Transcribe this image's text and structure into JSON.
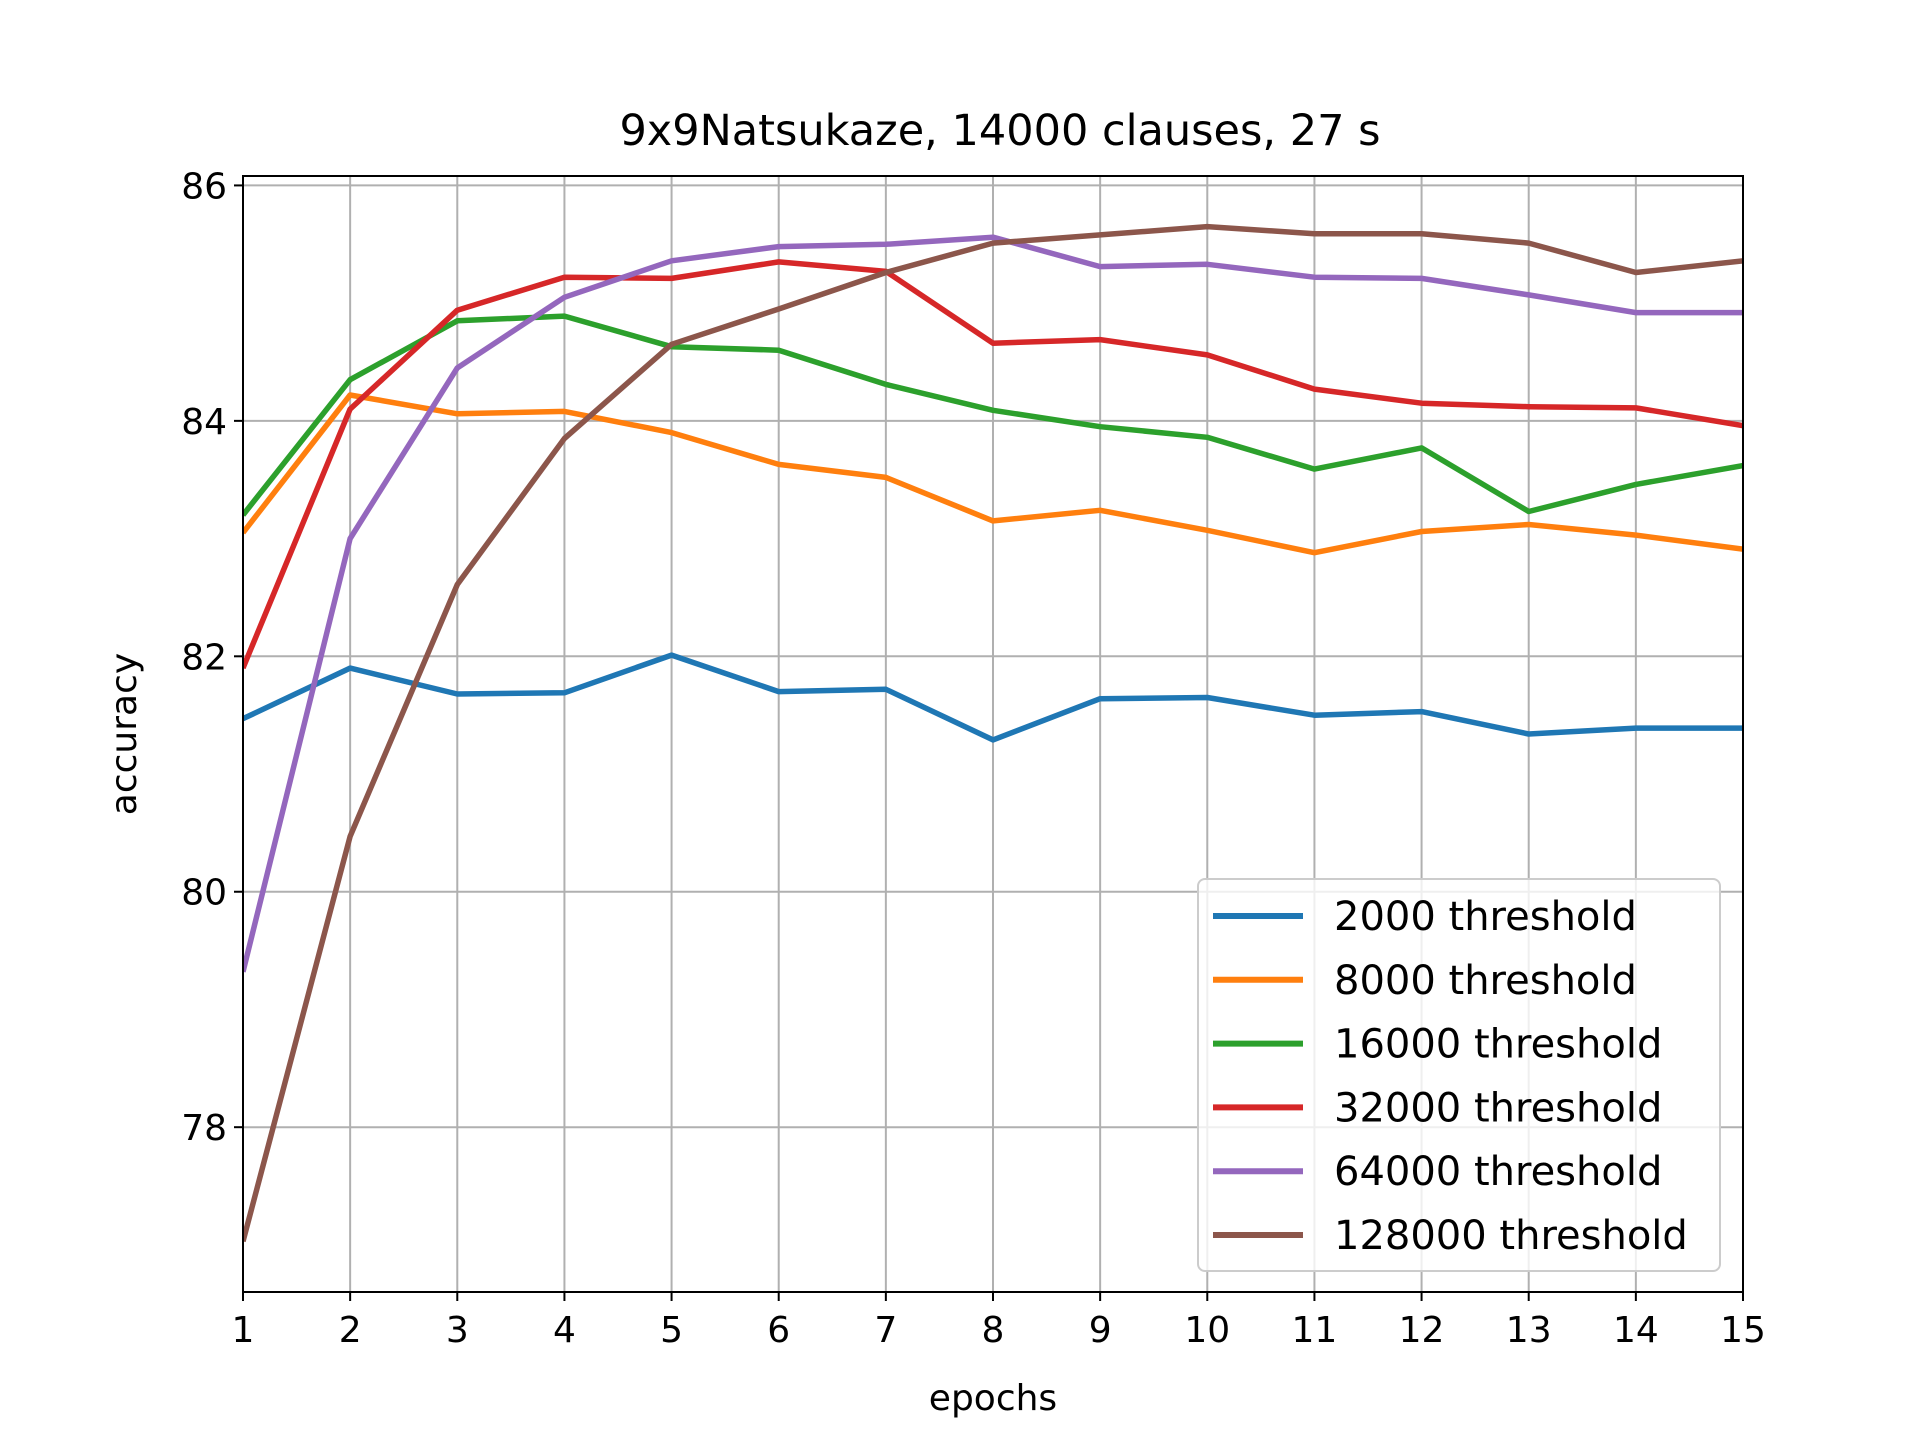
{
  "chart_data": {
    "type": "line",
    "title": "9x9Natsukaze, 14000 clauses, 27 s",
    "xlabel": "epochs",
    "ylabel": "accuracy",
    "x": [
      1,
      2,
      3,
      4,
      5,
      6,
      7,
      8,
      9,
      10,
      11,
      12,
      13,
      14,
      15
    ],
    "x_ticks": [
      "1",
      "2",
      "3",
      "4",
      "5",
      "6",
      "7",
      "8",
      "9",
      "10",
      "11",
      "12",
      "13",
      "14",
      "15"
    ],
    "y_ticks": [
      "78",
      "80",
      "82",
      "84",
      "86"
    ],
    "xlim": [
      1,
      15
    ],
    "ylim": [
      76.6,
      86.08
    ],
    "grid": true,
    "legend_position": "lower-right",
    "series": [
      {
        "name": "2000 threshold",
        "color": "#1f77b4",
        "values": [
          81.47,
          81.9,
          81.68,
          81.69,
          82.01,
          81.7,
          81.72,
          81.29,
          81.64,
          81.65,
          81.5,
          81.53,
          81.34,
          81.39,
          81.39
        ]
      },
      {
        "name": "8000 threshold",
        "color": "#ff7f0e",
        "values": [
          83.05,
          84.22,
          84.06,
          84.08,
          83.9,
          83.63,
          83.52,
          83.15,
          83.24,
          83.07,
          82.88,
          83.06,
          83.12,
          83.03,
          82.91
        ]
      },
      {
        "name": "16000 threshold",
        "color": "#2ca02c",
        "values": [
          83.2,
          84.35,
          84.85,
          84.89,
          84.63,
          84.6,
          84.31,
          84.09,
          83.95,
          83.86,
          83.59,
          83.77,
          83.23,
          83.46,
          83.62
        ]
      },
      {
        "name": "32000 threshold",
        "color": "#d62728",
        "values": [
          81.9,
          84.1,
          84.94,
          85.22,
          85.21,
          85.35,
          85.27,
          84.66,
          84.69,
          84.56,
          84.27,
          84.15,
          84.12,
          84.11,
          83.96
        ]
      },
      {
        "name": "64000 threshold",
        "color": "#9467bd",
        "values": [
          79.32,
          83.0,
          84.45,
          85.05,
          85.36,
          85.48,
          85.5,
          85.56,
          85.31,
          85.33,
          85.22,
          85.21,
          85.07,
          84.92,
          84.92
        ]
      },
      {
        "name": "128000 threshold",
        "color": "#8c564b",
        "values": [
          77.03,
          80.47,
          82.61,
          83.85,
          84.65,
          84.95,
          85.26,
          85.51,
          85.58,
          85.65,
          85.59,
          85.59,
          85.51,
          85.26,
          85.36
        ]
      }
    ]
  }
}
